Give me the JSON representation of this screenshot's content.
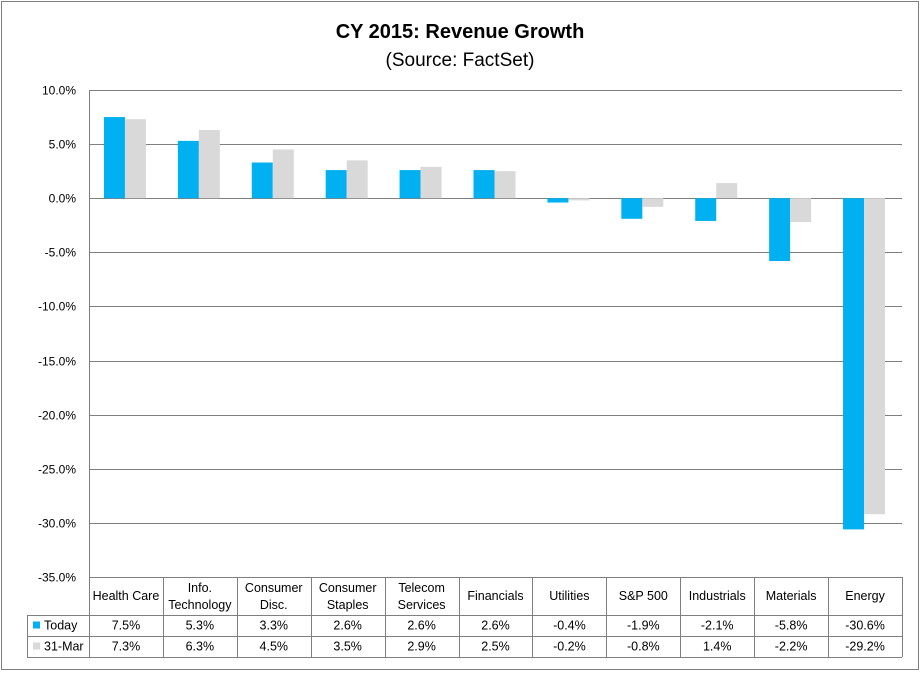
{
  "chart_data": {
    "type": "bar",
    "title": "CY 2015: Revenue Growth",
    "subtitle": "(Source: FactSet)",
    "xlabel": "",
    "ylabel": "",
    "ylim": [
      -35,
      10
    ],
    "yticks": [
      10,
      5,
      0,
      -5,
      -10,
      -15,
      -20,
      -25,
      -30,
      -35
    ],
    "ytick_labels": [
      "10.0%",
      "5.0%",
      "0.0%",
      "-5.0%",
      "-10.0%",
      "-15.0%",
      "-20.0%",
      "-25.0%",
      "-30.0%",
      "-35.0%"
    ],
    "grid": true,
    "legend_placement": "data-table-left",
    "categories": [
      [
        "Health Care"
      ],
      [
        "Info.",
        "Technology"
      ],
      [
        "Consumer",
        "Disc."
      ],
      [
        "Consumer",
        "Staples"
      ],
      [
        "Telecom",
        "Services"
      ],
      [
        "Financials"
      ],
      [
        "Utilities"
      ],
      [
        "S&P 500"
      ],
      [
        "Industrials"
      ],
      [
        "Materials"
      ],
      [
        "Energy"
      ]
    ],
    "series": [
      {
        "name": "Today",
        "color": "#00b0f0",
        "values": [
          7.5,
          5.3,
          3.3,
          2.6,
          2.6,
          2.6,
          -0.4,
          -1.9,
          -2.1,
          -5.8,
          -30.6
        ],
        "labels": [
          "7.5%",
          "5.3%",
          "3.3%",
          "2.6%",
          "2.6%",
          "2.6%",
          "-0.4%",
          "-1.9%",
          "-2.1%",
          "-5.8%",
          "-30.6%"
        ]
      },
      {
        "name": "31-Mar",
        "color": "#d9d9d9",
        "values": [
          7.3,
          6.3,
          4.5,
          3.5,
          2.9,
          2.5,
          -0.2,
          -0.8,
          1.4,
          -2.2,
          -29.2
        ],
        "labels": [
          "7.3%",
          "6.3%",
          "4.5%",
          "3.5%",
          "2.9%",
          "2.5%",
          "-0.2%",
          "-0.8%",
          "1.4%",
          "-2.2%",
          "-29.2%"
        ]
      }
    ]
  }
}
